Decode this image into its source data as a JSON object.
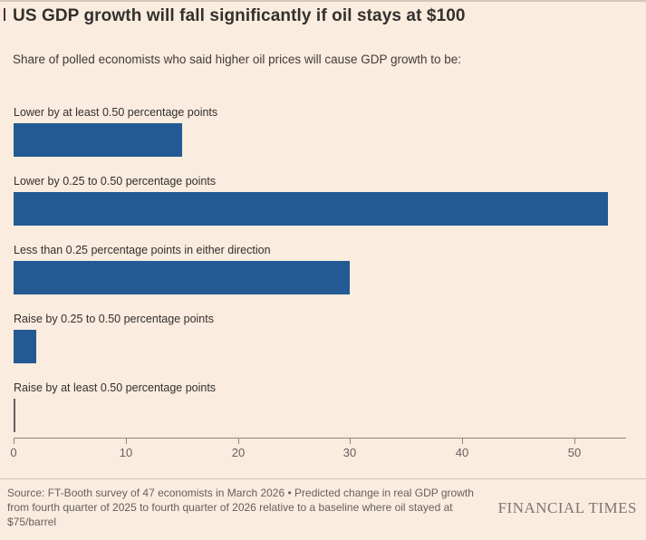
{
  "title": "US GDP growth will fall significantly if oil stays at $100",
  "subtitle": "Share of polled economists who said higher oil prices will cause GDP growth to be:",
  "chart_data": {
    "type": "bar",
    "orientation": "horizontal",
    "title": "US GDP growth will fall significantly if oil stays at $100",
    "subtitle": "Share of polled economists who said higher oil prices will cause GDP growth to be:",
    "categories": [
      "Lower by at least 0.50 percentage points",
      "Lower by 0.25 to 0.50 percentage points",
      "Less than 0.25 percentage points in either direction",
      "Raise by 0.25 to 0.50 percentage points",
      "Raise by at least 0.50 percentage points"
    ],
    "values": [
      15,
      53,
      30,
      2,
      0
    ],
    "value_unit": "% of polled economists",
    "x_ticks": [
      0,
      10,
      20,
      30,
      40,
      50
    ],
    "xlim": [
      0,
      54.6
    ],
    "grid": false,
    "legend": "none",
    "bar_color": "#235a94",
    "zero_bar_color": "#66605c"
  },
  "footer": {
    "source": "Source: FT-Booth survey of 47 economists in March 2026 • Predicted change in real GDP growth from fourth quarter of 2025 to fourth quarter of 2026 relative to a baseline where oil stayed at $75/barrel",
    "brand": "FINANCIAL TIMES"
  },
  "colors": {
    "background": "#faecde",
    "bar": "#235a94",
    "zero_bar": "#66605c",
    "title_text": "#33302e",
    "secondary_text": "#66605c",
    "axis_line": "#8f8780",
    "divider": "#d3c5b6"
  }
}
